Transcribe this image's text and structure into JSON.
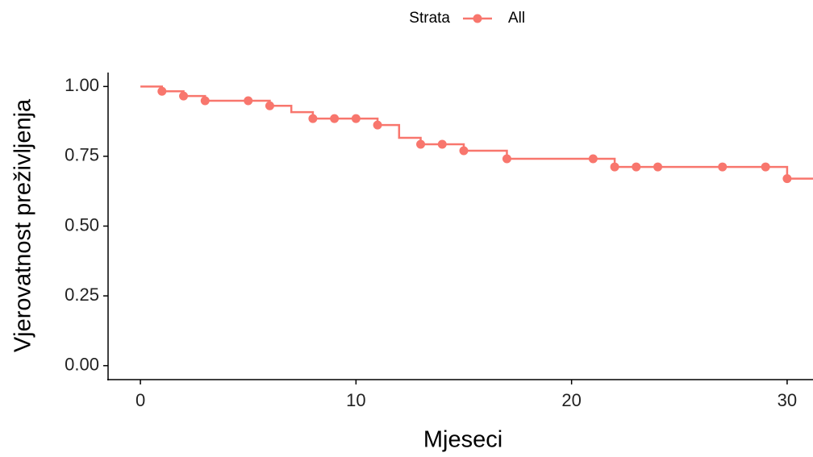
{
  "chart_data": {
    "type": "step",
    "xlabel": "Mjeseci",
    "ylabel": "Vjerovatnost preživljenja",
    "legend_title": "Strata",
    "legend_position": "top",
    "xlim": [
      -1.5,
      31.2
    ],
    "ylim": [
      -0.05,
      1.05
    ],
    "xticks": [
      0,
      10,
      20,
      30
    ],
    "yticks": [
      {
        "value": 0,
        "label": "0.00"
      },
      {
        "value": 0.25,
        "label": "0.25"
      },
      {
        "value": 0.5,
        "label": "0.50"
      },
      {
        "value": 0.75,
        "label": "0.75"
      },
      {
        "value": 1,
        "label": "1.00"
      }
    ],
    "grid": false,
    "series": [
      {
        "name": "All",
        "color": "#F8766D",
        "x": [
          0,
          1,
          2,
          3,
          6,
          7,
          8,
          11,
          12,
          13,
          15,
          17,
          22,
          30
        ],
        "values": [
          1,
          0.983,
          0.966,
          0.949,
          0.931,
          0.908,
          0.885,
          0.862,
          0.816,
          0.793,
          0.77,
          0.741,
          0.712,
          0.67
        ],
        "censor_x": [
          1,
          2,
          3,
          5,
          6,
          8,
          9,
          10,
          11,
          13,
          14,
          15,
          17,
          21,
          22,
          23,
          24,
          27,
          29,
          30
        ],
        "censor_values": [
          0.983,
          0.966,
          0.949,
          0.949,
          0.931,
          0.885,
          0.885,
          0.885,
          0.862,
          0.793,
          0.793,
          0.77,
          0.741,
          0.741,
          0.712,
          0.712,
          0.712,
          0.712,
          0.712,
          0.67
        ]
      }
    ]
  }
}
